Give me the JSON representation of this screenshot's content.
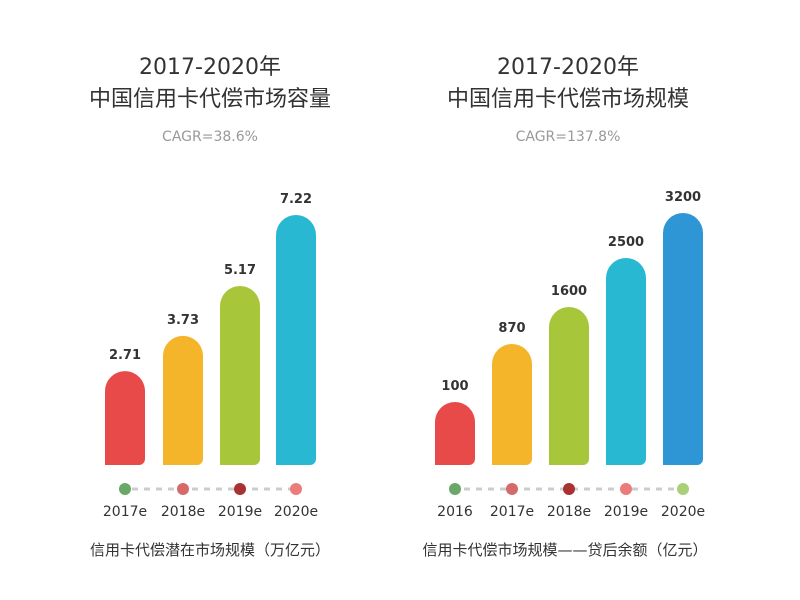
{
  "chart_data": [
    {
      "type": "bar",
      "title": "2017-2020年",
      "title_line2": "中国信用卡代偿市场容量",
      "subtitle": "CAGR=38.6%",
      "categories": [
        "2017e",
        "2018e",
        "2019e",
        "2020e"
      ],
      "values": [
        2.71,
        3.73,
        5.17,
        7.22
      ],
      "value_labels": [
        "2.71",
        "3.73",
        "5.17",
        "7.22"
      ],
      "bar_colors": [
        "#e84a4a",
        "#f4b52a",
        "#a8c63a",
        "#28b8d2"
      ],
      "dot_colors": [
        "#6aa86a",
        "#d46a6a",
        "#a83232",
        "#ec7c7c"
      ],
      "ylim": [
        0,
        7.22
      ],
      "caption": "信用卡代偿潜在市场规模（万亿元）"
    },
    {
      "type": "bar",
      "title": "2017-2020年",
      "title_line2": "中国信用卡代偿市场规模",
      "subtitle": "CAGR=137.8%",
      "categories": [
        "2016",
        "2017e",
        "2018e",
        "2019e",
        "2020e"
      ],
      "values": [
        100,
        870,
        1600,
        2500,
        3200
      ],
      "value_labels": [
        "100",
        "870",
        "1600",
        "2500",
        "3200"
      ],
      "bar_heights_rank": [
        1,
        2,
        3,
        4,
        5
      ],
      "bar_colors": [
        "#e84a4a",
        "#f4b52a",
        "#a8c63a",
        "#28b8d2",
        "#2e96d4"
      ],
      "dot_colors": [
        "#6aa86a",
        "#d46a6a",
        "#a83232",
        "#ec7c7c",
        "#a8d078"
      ],
      "caption": "信用卡代偿市场规模——贷后余额（亿元）"
    }
  ]
}
